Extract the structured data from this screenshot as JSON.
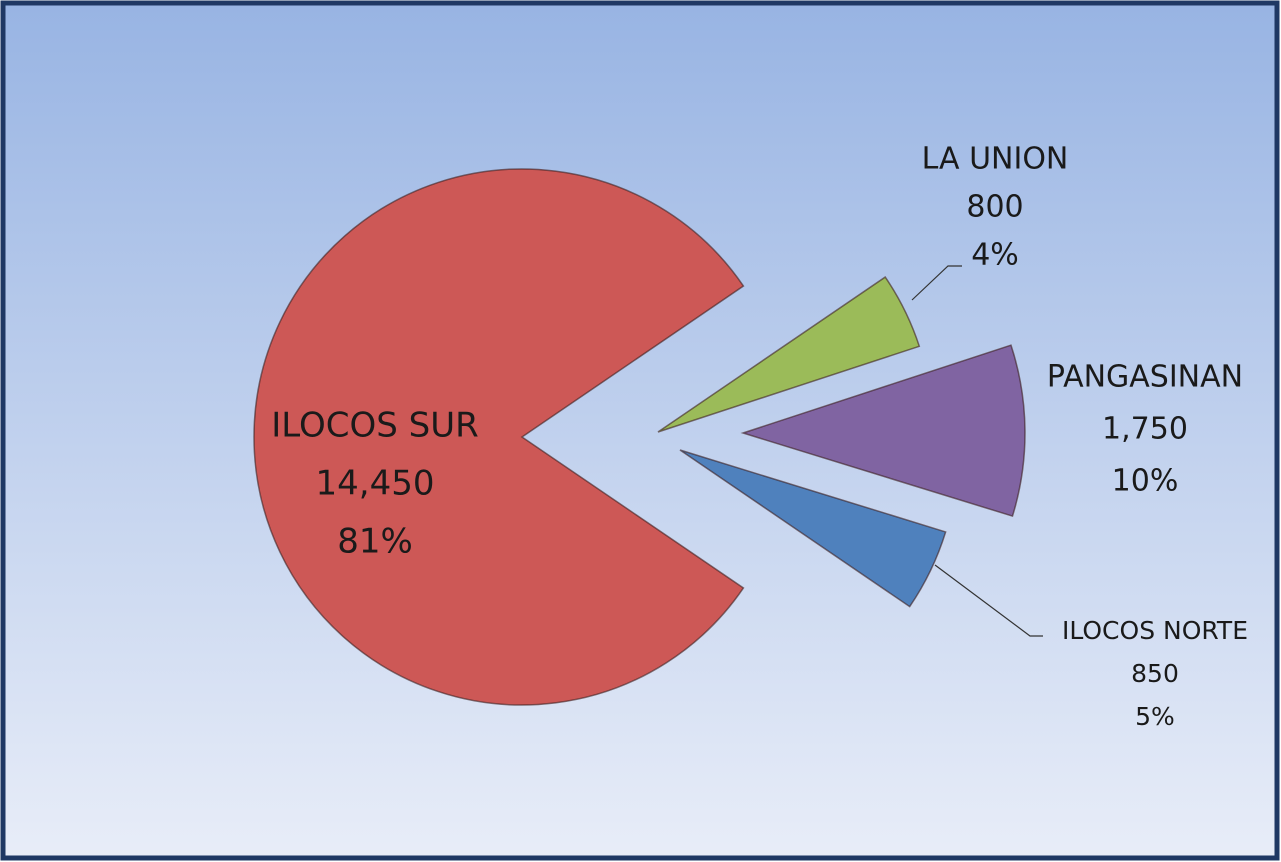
{
  "chart_data": {
    "type": "pie",
    "categories": [
      "ILOCOS SUR",
      "LA UNION",
      "PANGASINAN",
      "ILOCOS NORTE"
    ],
    "values": [
      14450,
      800,
      1750,
      850
    ],
    "value_labels": [
      "14,450",
      "800",
      "1,750",
      "850"
    ],
    "percentages": [
      81,
      4,
      10,
      5
    ],
    "percentage_labels": [
      "81%",
      "4%",
      "10%",
      "5%"
    ],
    "colors": [
      "#cd5856",
      "#9bbb59",
      "#8064a2",
      "#4f81bd"
    ]
  }
}
